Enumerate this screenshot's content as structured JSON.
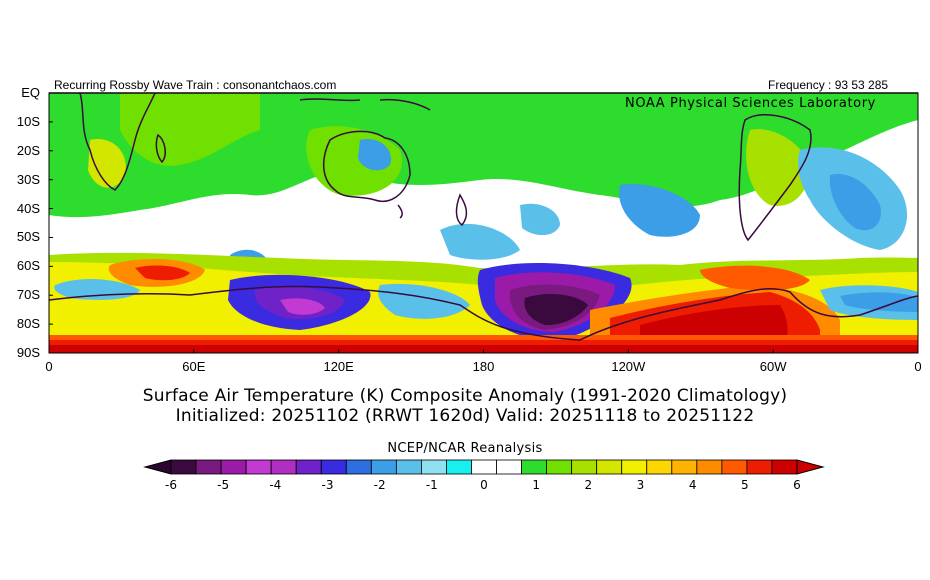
{
  "header": {
    "left": "Recurring Rossby Wave Train : consonantchaos.com",
    "right": "Frequency : 93 53 285",
    "lab": "NOAA Physical Sciences Laboratory"
  },
  "title": {
    "line1": "Surface Air Temperature (K) Composite Anomaly (1991-2020 Climatology)",
    "line2": "Initialized: 20251102 (RRWT 1620d) Valid: 20251118 to 20251122"
  },
  "source": "NCEP/NCAR Reanalysis",
  "lat_labels": [
    "EQ",
    "10S",
    "20S",
    "30S",
    "40S",
    "50S",
    "60S",
    "70S",
    "80S",
    "90S"
  ],
  "lon_labels": [
    "0",
    "60E",
    "120E",
    "180",
    "120W",
    "60W",
    "0"
  ],
  "colorbar": {
    "ticks": [
      "-6",
      "-5",
      "-4",
      "-3",
      "-2",
      "-1",
      "0",
      "1",
      "2",
      "3",
      "4",
      "5",
      "6"
    ],
    "colors": [
      "#3a0a3f",
      "#7a1a80",
      "#9c1aa8",
      "#c23ad2",
      "#b02fc0",
      "#6f22c8",
      "#3a2ae0",
      "#2d6fe0",
      "#3c9ee6",
      "#5ac0ea",
      "#8fe0f0",
      "#18f0f0",
      "#ffffff",
      "#ffffff",
      "#2edc2e",
      "#70e000",
      "#a8e000",
      "#d2e600",
      "#f0f000",
      "#ffd700",
      "#ffb300",
      "#ff8c00",
      "#ff5a00",
      "#ee1c00",
      "#cc0000"
    ]
  },
  "map": {
    "blobs": [
      {
        "type": "neg3",
        "lon": 115,
        "lat": -76
      },
      {
        "type": "neg4",
        "lon": 165,
        "lat": -72
      },
      {
        "type": "neg6",
        "lon": 205,
        "lat": -73
      },
      {
        "type": "pos5",
        "lon": 255,
        "lat": -77
      },
      {
        "type": "pos4",
        "lon": 292,
        "lat": -70
      },
      {
        "type": "pos4",
        "lon": 45,
        "lat": -63
      },
      {
        "type": "neg2",
        "lon": 325,
        "lat": -45
      },
      {
        "type": "neg2",
        "lon": 220,
        "lat": -42
      },
      {
        "type": "neg2",
        "lon": 290,
        "lat": -40
      }
    ]
  }
}
